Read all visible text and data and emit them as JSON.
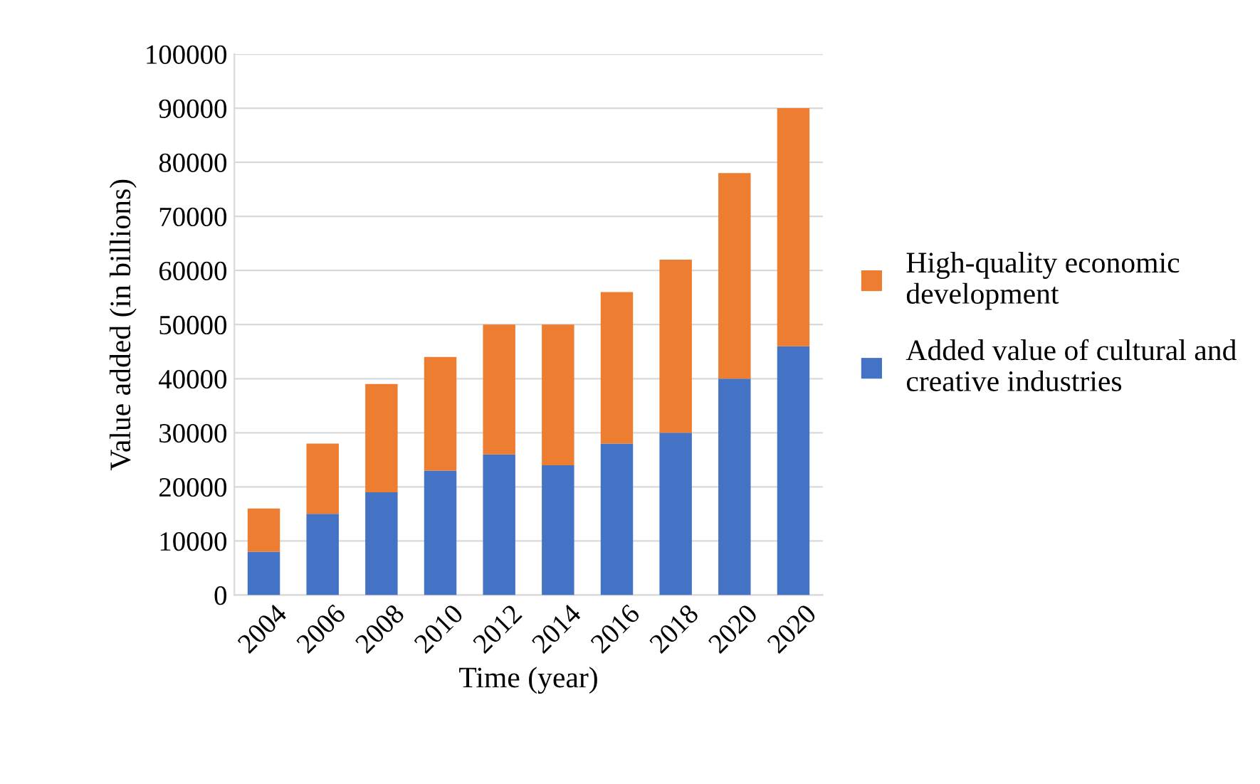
{
  "chart_data": {
    "type": "bar",
    "stacked": true,
    "xlabel": "Time (year)",
    "ylabel": "Value added (in billions)",
    "categories": [
      "2004",
      "2006",
      "2008",
      "2010",
      "2012",
      "2014",
      "2016",
      "2018",
      "2020",
      "2020"
    ],
    "series": [
      {
        "name": "Added value of cultural and creative industries",
        "color": "#4472c4",
        "values": [
          8000,
          15000,
          19000,
          23000,
          26000,
          24000,
          28000,
          30000,
          40000,
          46000
        ]
      },
      {
        "name": "High-quality economic development",
        "color": "#ed7d31",
        "values": [
          8000,
          13000,
          20000,
          21000,
          24000,
          26000,
          28000,
          32000,
          38000,
          44000
        ]
      }
    ],
    "ylim": [
      0,
      100000
    ],
    "yticks": [
      0,
      10000,
      20000,
      30000,
      40000,
      50000,
      60000,
      70000,
      80000,
      90000,
      100000
    ],
    "grid": "y",
    "legend": "right"
  }
}
